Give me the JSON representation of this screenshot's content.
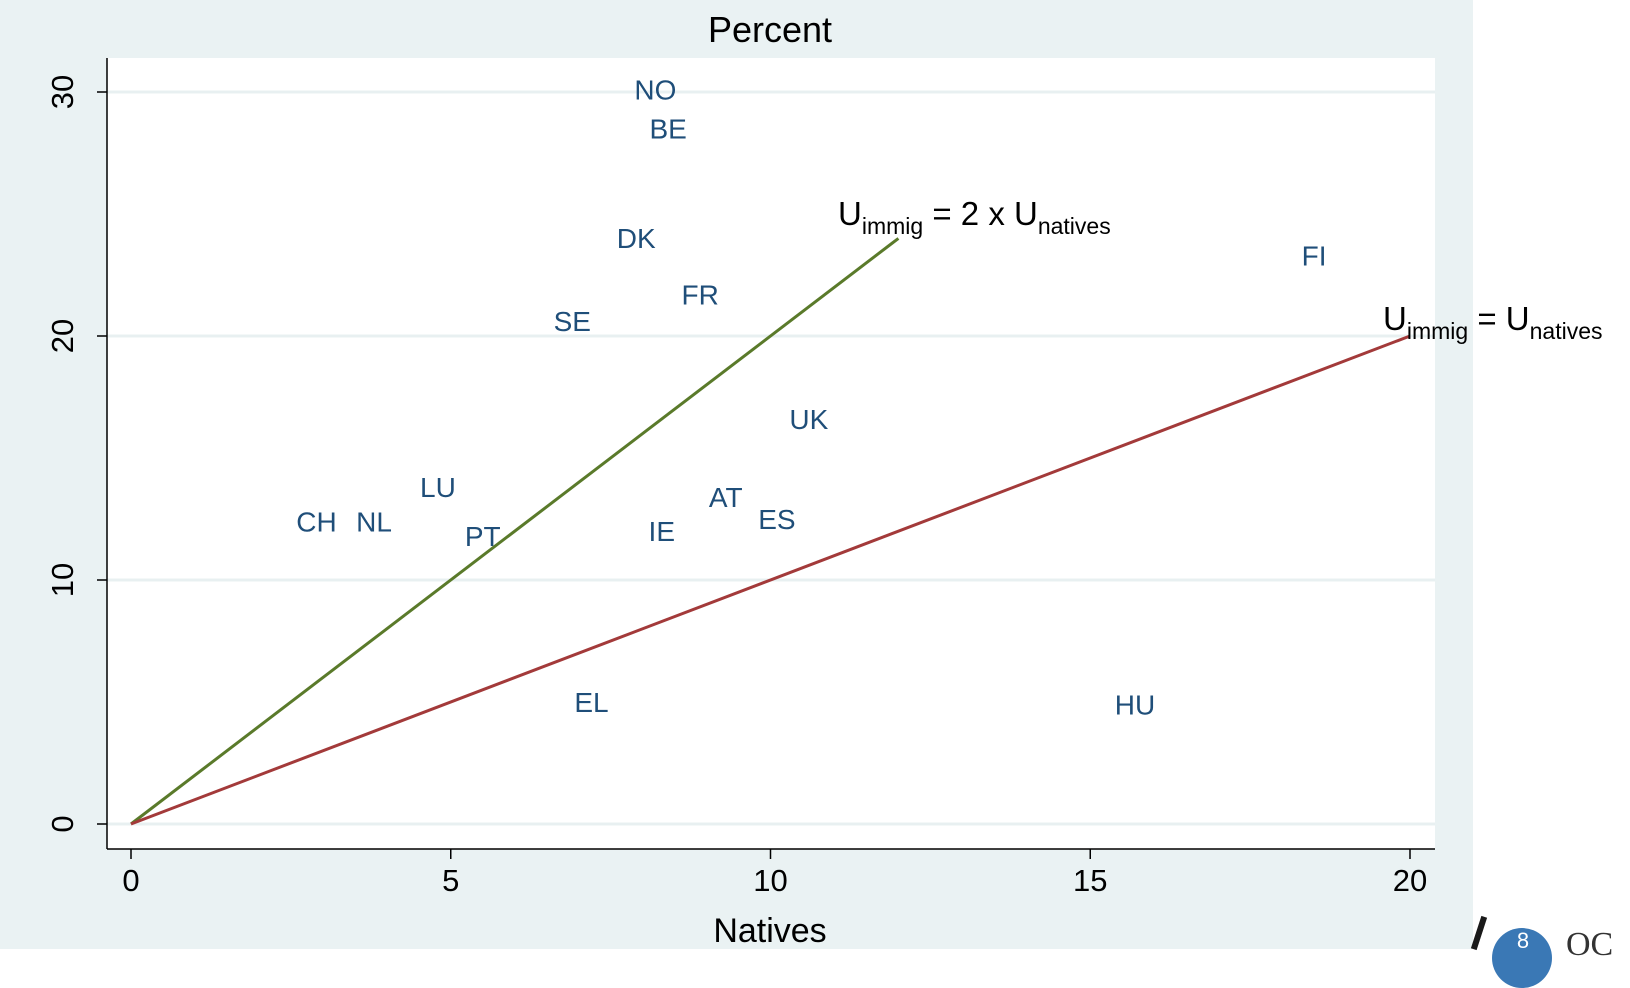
{
  "chart_data": {
    "type": "scatter",
    "title": "Percent",
    "xlabel": "Natives",
    "ylabel": "",
    "xlim": [
      0,
      20
    ],
    "ylim": [
      0,
      30
    ],
    "x_ticks": [
      "0",
      "5",
      "10",
      "15",
      "20"
    ],
    "y_ticks": [
      "0",
      "10",
      "20",
      "30"
    ],
    "points": [
      {
        "label": "NO",
        "x": 8.2,
        "y": 30.0
      },
      {
        "label": "BE",
        "x": 8.4,
        "y": 28.4
      },
      {
        "label": "DK",
        "x": 7.9,
        "y": 23.9
      },
      {
        "label": "FI",
        "x": 18.5,
        "y": 23.2
      },
      {
        "label": "FR",
        "x": 8.9,
        "y": 21.6
      },
      {
        "label": "SE",
        "x": 6.9,
        "y": 20.5
      },
      {
        "label": "UK",
        "x": 10.6,
        "y": 16.5
      },
      {
        "label": "LU",
        "x": 4.8,
        "y": 13.7
      },
      {
        "label": "AT",
        "x": 9.3,
        "y": 13.3
      },
      {
        "label": "CH",
        "x": 2.9,
        "y": 12.3
      },
      {
        "label": "NL",
        "x": 3.8,
        "y": 12.3
      },
      {
        "label": "ES",
        "x": 10.1,
        "y": 12.4
      },
      {
        "label": "PT",
        "x": 5.5,
        "y": 11.7
      },
      {
        "label": "IE",
        "x": 8.3,
        "y": 11.9
      },
      {
        "label": "EL",
        "x": 7.2,
        "y": 4.9
      },
      {
        "label": "HU",
        "x": 15.7,
        "y": 4.8
      }
    ],
    "lines": [
      {
        "label_main": "U",
        "label_sub1": "immig",
        "label_mid": " = 2 x U",
        "label_sub2": "natives",
        "x": [
          0,
          12
        ],
        "y": [
          0,
          24
        ],
        "color": "#5a7a2a"
      },
      {
        "label_main": "U",
        "label_sub1": "immig",
        "label_mid": " = U",
        "label_sub2": "natives",
        "x": [
          0,
          20
        ],
        "y": [
          0,
          20
        ],
        "color": "#a33a3a"
      }
    ],
    "grid": true,
    "label_color": "#1f4e79",
    "plot_bg": "#ffffff",
    "outer_bg": "#eaf2f3"
  },
  "footer": {
    "page_number": "8",
    "logo_text": "OC"
  }
}
